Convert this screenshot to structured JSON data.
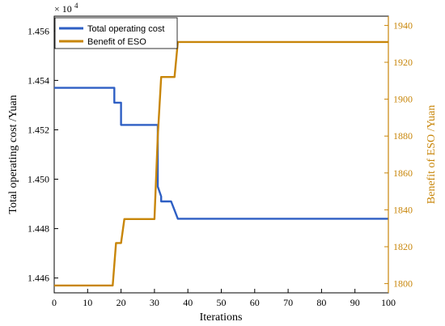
{
  "chart_data": {
    "type": "line",
    "xlabel": "Iterations",
    "xlim": [
      0,
      100
    ],
    "xticks": [
      0,
      10,
      20,
      30,
      40,
      50,
      60,
      70,
      80,
      90,
      100
    ],
    "left_axis": {
      "label": "Total operating cost /Yuan",
      "exponent_label": "× 10",
      "exponent_power": "4",
      "ylim": [
        1.4454,
        1.4566
      ],
      "ticks": [
        1.446,
        1.448,
        1.45,
        1.452,
        1.454,
        1.456
      ],
      "tick_labels": [
        "1.446",
        "1.448",
        "1.450",
        "1.452",
        "1.454",
        "1.456"
      ],
      "color": "#000000"
    },
    "right_axis": {
      "label": "Benefit of ESO /Yuan",
      "ylim": [
        1795,
        1945
      ],
      "ticks": [
        1800,
        1820,
        1840,
        1860,
        1880,
        1900,
        1920,
        1940
      ],
      "tick_labels": [
        "1800",
        "1820",
        "1840",
        "1860",
        "1880",
        "1900",
        "1920",
        "1940"
      ],
      "color": "#c8860a"
    },
    "series": [
      {
        "name": "Total operating cost",
        "axis": "left",
        "color": "#2e5fc4",
        "x": [
          0,
          18,
          18,
          20,
          20,
          22,
          22,
          31,
          31,
          32,
          32,
          35,
          35,
          37,
          37,
          100
        ],
        "y": [
          1.4537,
          1.4537,
          1.4531,
          1.4531,
          1.4522,
          1.4522,
          1.4522,
          1.4522,
          1.4497,
          1.4493,
          1.4491,
          1.4491,
          1.4491,
          1.4484,
          1.4484,
          1.4484
        ]
      },
      {
        "name": "Benefit of ESO",
        "axis": "right",
        "color": "#c8860a",
        "x": [
          0,
          17.5,
          18.5,
          20,
          21,
          22,
          23,
          30,
          31,
          32,
          33,
          36,
          37,
          100
        ],
        "y": [
          1799,
          1799,
          1822,
          1822,
          1835,
          1835,
          1835,
          1835,
          1880,
          1912,
          1912,
          1912,
          1931,
          1931
        ]
      }
    ],
    "legend_position": "top-left",
    "grid": false
  }
}
